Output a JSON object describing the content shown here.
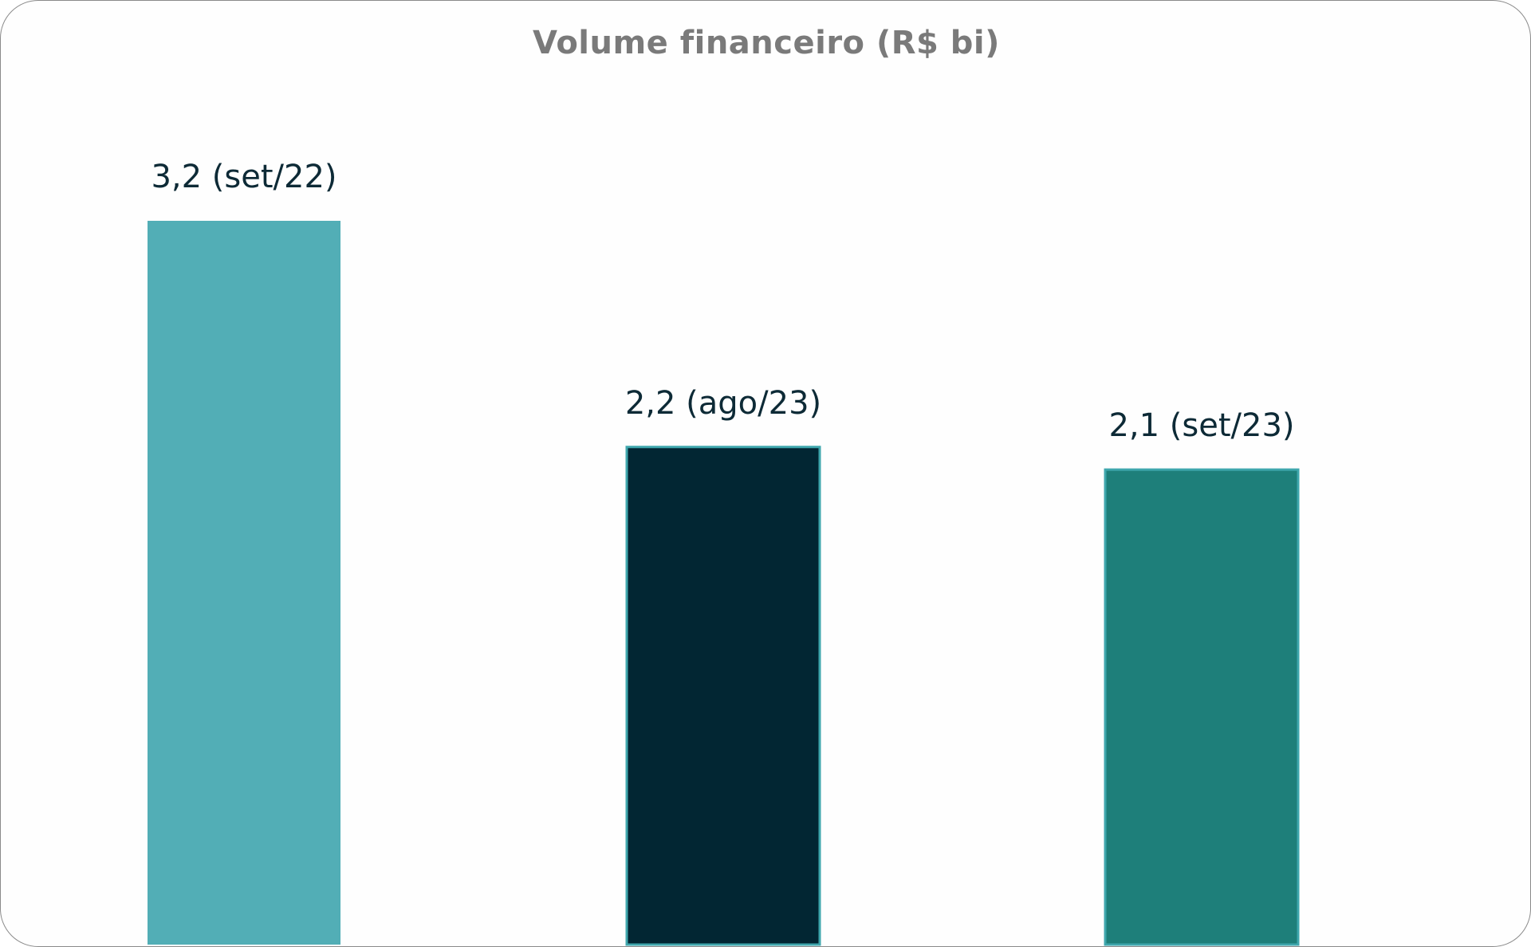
{
  "chart_data": {
    "type": "bar",
    "title": "Volume financeiro (R$ bi)",
    "categories": [
      "set/22",
      "ago/23",
      "set/23"
    ],
    "values": [
      3.2,
      2.2,
      2.1
    ],
    "data_labels": [
      "3,2 (set/22)",
      "2,2 (ago/23)",
      "2,1 (set/23)"
    ],
    "bar_colors": [
      "#52aeb6",
      "#022633",
      "#1e7f7a"
    ],
    "bar_outline_color": "#3fa7ad",
    "xlabel": "",
    "ylabel": "",
    "ylim": [
      0,
      3.2
    ],
    "grid": false,
    "legend": "none"
  }
}
